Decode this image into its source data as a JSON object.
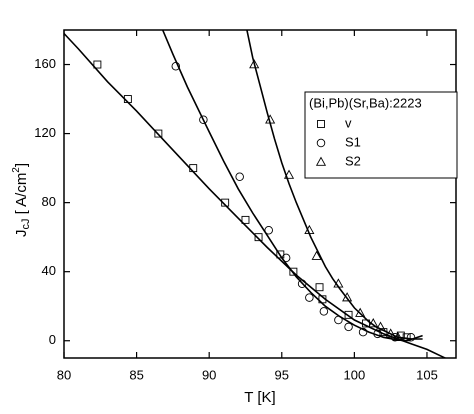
{
  "chart_data": {
    "type": "scatter",
    "x_label": "T [K]",
    "y_label": {
      "main": "J",
      "sub": "cJ",
      "unit": " [ A/cm",
      "sup": "2",
      "end": "]"
    },
    "xlim": [
      80,
      107
    ],
    "ylim": [
      -10,
      180
    ],
    "xticks": [
      80,
      85,
      90,
      95,
      100,
      105
    ],
    "yticks": [
      0,
      40,
      80,
      120,
      160
    ],
    "legend": {
      "title": "(Bi,Pb)(Sr,Ba):2223",
      "position": "upper right"
    },
    "series": [
      {
        "name": "v",
        "marker": "square",
        "x": [
          82.3,
          84.4,
          86.5,
          88.9,
          91.1,
          92.5,
          93.4,
          94.9,
          95.8,
          97.6,
          97.8,
          99.6,
          100.8,
          102.0,
          103.2,
          103.6
        ],
        "values": [
          160,
          140,
          120,
          100,
          80,
          70,
          60,
          50,
          40,
          31,
          24,
          15,
          10,
          5,
          3,
          2
        ]
      },
      {
        "name": "S1",
        "marker": "circle",
        "x": [
          87.7,
          89.6,
          92.1,
          94.1,
          95.3,
          96.4,
          96.9,
          97.9,
          98.9,
          99.6,
          100.6,
          101.6,
          102.8,
          103.9
        ],
        "values": [
          159,
          128,
          95,
          64,
          48,
          33,
          25,
          17,
          12,
          8,
          5,
          4,
          2,
          2
        ]
      },
      {
        "name": "S2",
        "marker": "triangle",
        "x": [
          93.1,
          94.2,
          95.5,
          96.9,
          97.4,
          98.9,
          99.5,
          100.4,
          101.3,
          101.8,
          102.5,
          103.0
        ],
        "values": [
          160,
          128,
          96,
          64,
          49,
          33,
          25,
          16,
          10,
          8,
          4,
          2
        ]
      }
    ],
    "curves": [
      {
        "x": [
          80,
          81,
          83,
          85,
          87,
          90,
          92,
          94,
          95,
          96,
          98,
          100,
          101,
          102,
          103,
          104,
          105,
          106,
          106.5
        ],
        "values": [
          178,
          169,
          150,
          133,
          115,
          88,
          71,
          54,
          46,
          38,
          24,
          12,
          8,
          4,
          1,
          -2,
          -5,
          -9,
          -11
        ]
      },
      {
        "x": [
          86.8,
          87.5,
          88.5,
          90,
          91,
          92,
          93,
          94,
          95,
          96,
          97,
          98,
          99,
          100,
          101,
          102,
          103,
          103.5,
          104,
          104.7
        ],
        "values": [
          180,
          166,
          147,
          121,
          104,
          88,
          74,
          61,
          48,
          37,
          28,
          20,
          14,
          9,
          5,
          2,
          0.5,
          0,
          1,
          3
        ]
      },
      {
        "x": [
          92.6,
          93,
          93.5,
          94,
          94.5,
          95,
          95.5,
          96,
          97,
          98,
          98.5,
          99,
          100,
          101,
          101.5,
          102,
          103,
          104,
          104.7
        ],
        "values": [
          180,
          164,
          148,
          132,
          117,
          103,
          91,
          80,
          60,
          43,
          36,
          30,
          19,
          11,
          8,
          6,
          2,
          1,
          1
        ]
      }
    ]
  }
}
